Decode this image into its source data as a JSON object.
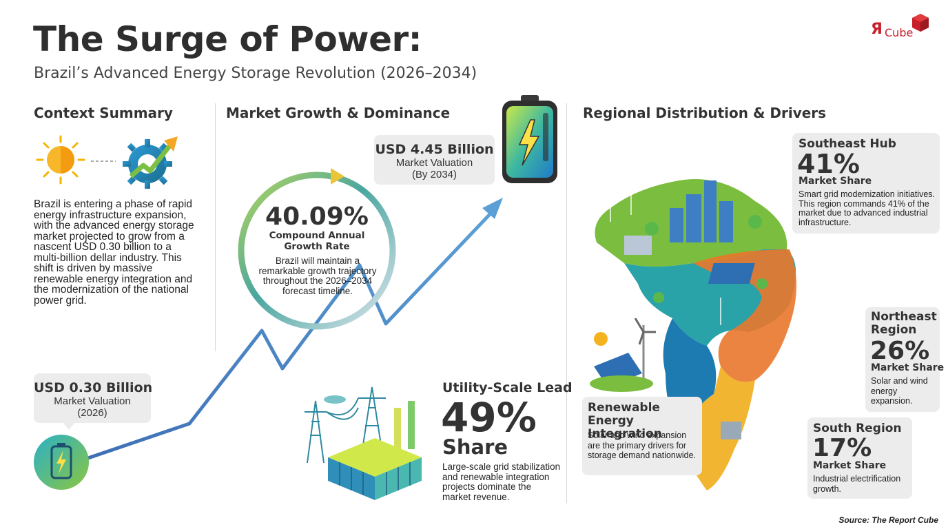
{
  "header": {
    "title": "The Surge of Power:",
    "subtitle": "Brazil’s Advanced Energy Storage Revolution (2026–2034)"
  },
  "logo": {
    "text_r": "Я",
    "text_cube": "Cube"
  },
  "context": {
    "heading": "Context Summary",
    "body": "Brazil is entering a phase of rapid energy infrastructure expansion, with the advanced energy storage market projected to grow from a nascent USD 0.30 billion to a multi-billion dellar industry. This shift is driven by massive renewable energy integration and the modernization of the national power grid."
  },
  "start_card": {
    "value": "USD 0.30 Billion",
    "label": "Market Valuation",
    "sub": "(2026)"
  },
  "market": {
    "heading": "Market Growth & Dominance",
    "end_card": {
      "value": "USD 4.45 Billion",
      "label": "Market Valuation",
      "sub": "(By 2034)"
    },
    "cagr": {
      "value": "40.09%",
      "label": "Compound Annual Growth Rate",
      "desc": "Brazil will maintain a remarkable growth trajectory throughout the 2026–2034 forecast timeline."
    },
    "utility": {
      "title": "Utility-Scale Lead",
      "value": "49%",
      "label": "Share",
      "desc": "Large-scale grid stabilization and renewable integration projects dominate the market revenue."
    }
  },
  "regional": {
    "heading": "Regional Distribution & Drivers",
    "southeast": {
      "title": "Southeast Hub",
      "value": "41%",
      "label": "Market Share",
      "desc": "Smart grid modernization initiatives. This region commands 41% of the market due to advanced industrial infrastructure."
    },
    "northeast": {
      "title": "Northeast Region",
      "value": "26%",
      "label": "Market Share",
      "desc": "Solar and wind energy expansion."
    },
    "south": {
      "title": "South Region",
      "value": "17%",
      "label": "Market Share",
      "desc": "Industrial electrification growth."
    },
    "renewable": {
      "title": "Renewable Energy Integration",
      "desc": "Solar and wind expansion are the primary drivers for storage demand nationwide."
    }
  },
  "source": "Source: The Report Cube",
  "colors": {
    "arrow": "#4a86c0",
    "southeast_green": "#7bbd3f",
    "central_teal": "#2aa3a8",
    "northeast_orange": "#e9772b",
    "south_yellow": "#f2b531"
  },
  "icons": [
    "sun-icon",
    "growth-gear-icon",
    "battery-icon",
    "large-battery-icon",
    "power-grid-icon",
    "brazil-map-icon",
    "solar-wind-icon"
  ]
}
